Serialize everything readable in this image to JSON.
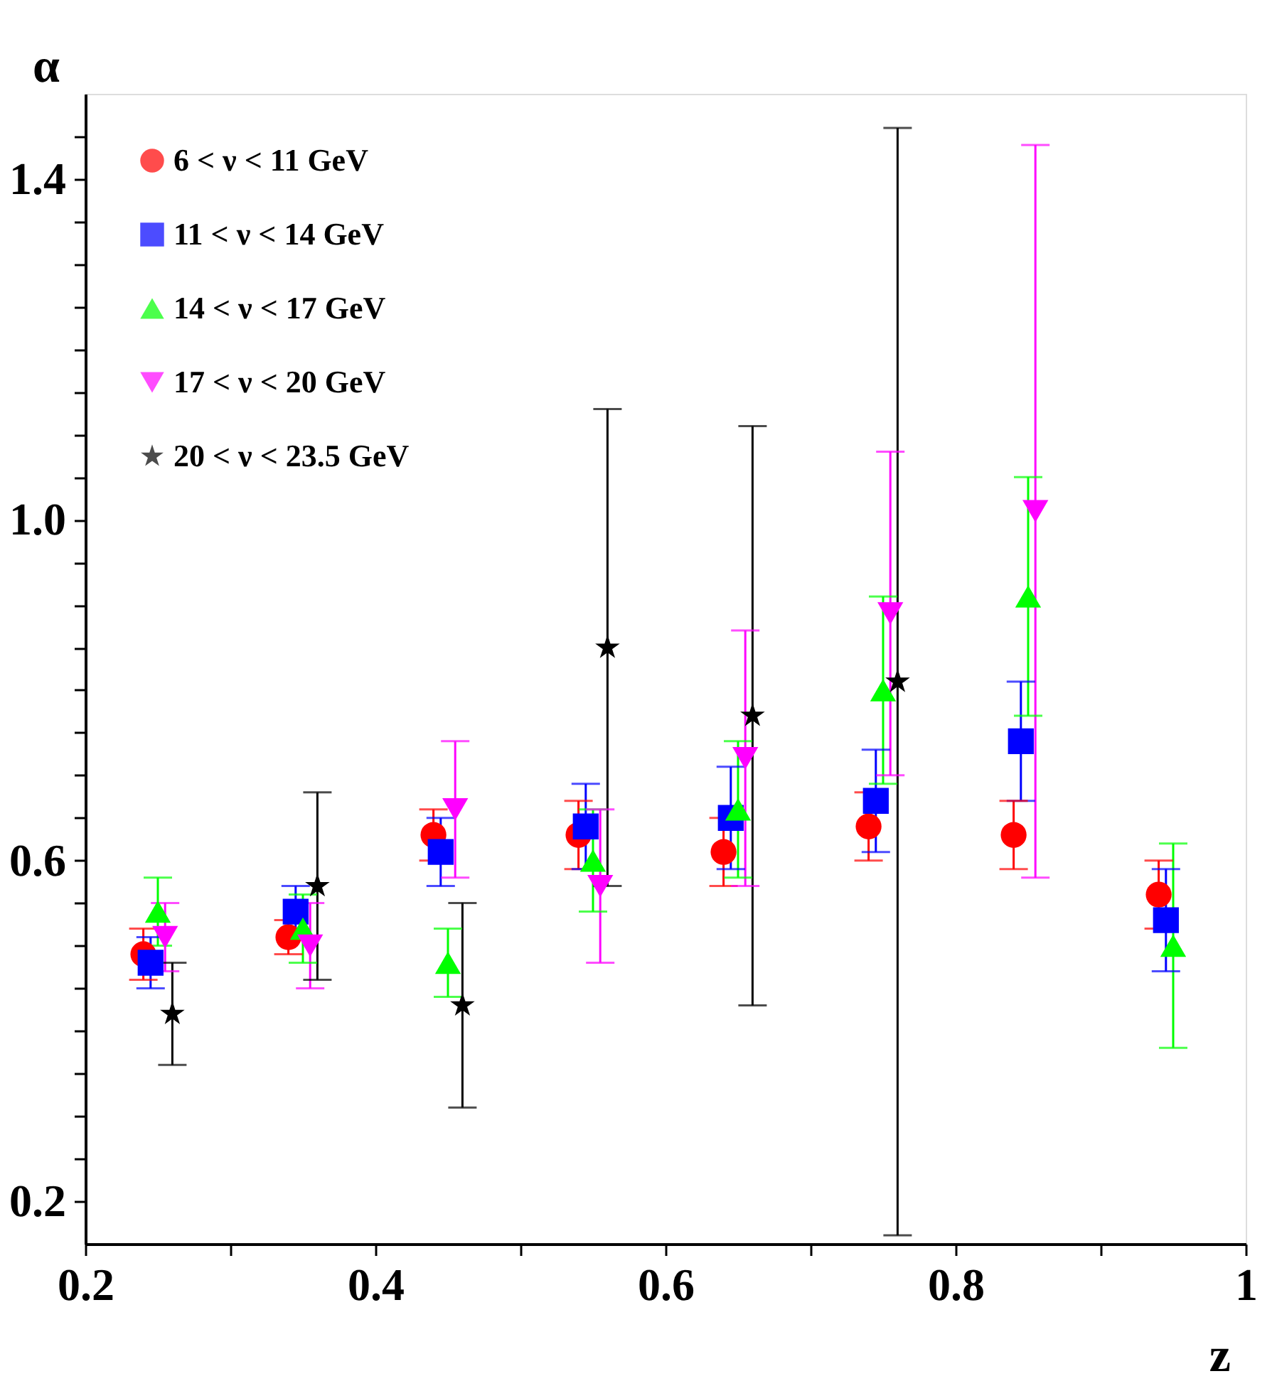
{
  "chart_data": {
    "type": "scatter",
    "xlabel": "z",
    "ylabel": "α",
    "xlim": [
      0.2,
      1.0
    ],
    "ylim": [
      0.15,
      1.5
    ],
    "xticks": [
      0.2,
      {
        "value": 0.3,
        "label": null
      },
      0.4,
      {
        "value": 0.5,
        "label": null
      },
      0.6,
      {
        "value": 0.7,
        "label": null
      },
      0.8,
      {
        "value": 0.9,
        "label": null
      },
      {
        "value": 1.0,
        "label": "1"
      }
    ],
    "yticks": [
      0.2,
      {
        "value": 0.25,
        "label": null
      },
      {
        "value": 0.3,
        "label": null
      },
      {
        "value": 0.35,
        "label": null
      },
      {
        "value": 0.4,
        "label": null
      },
      {
        "value": 0.45,
        "label": null
      },
      {
        "value": 0.5,
        "label": null
      },
      {
        "value": 0.55,
        "label": null
      },
      0.6,
      {
        "value": 0.65,
        "label": null
      },
      {
        "value": 0.7,
        "label": null
      },
      {
        "value": 0.75,
        "label": null
      },
      {
        "value": 0.8,
        "label": null
      },
      {
        "value": 0.85,
        "label": null
      },
      {
        "value": 0.9,
        "label": null
      },
      {
        "value": 0.95,
        "label": null
      },
      {
        "value": 1.0,
        "label": "1.0"
      },
      {
        "value": 1.05,
        "label": null
      },
      {
        "value": 1.1,
        "label": null
      },
      {
        "value": 1.15,
        "label": null
      },
      {
        "value": 1.2,
        "label": null
      },
      {
        "value": 1.25,
        "label": null
      },
      {
        "value": 1.3,
        "label": null
      },
      {
        "value": 1.35,
        "label": null
      },
      1.4,
      {
        "value": 1.45,
        "label": null
      }
    ],
    "grid": false,
    "legend": "top left",
    "series": [
      {
        "name": "6 < ν < 11 GeV",
        "color": "#ff0000",
        "marker": "circle",
        "x": [
          0.24,
          0.34,
          0.44,
          0.54,
          0.64,
          0.74,
          0.84,
          0.94
        ],
        "values": [
          0.49,
          0.51,
          0.63,
          0.63,
          0.61,
          0.64,
          0.63,
          0.56
        ],
        "errors": [
          0.03,
          0.02,
          0.03,
          0.04,
          0.04,
          0.04,
          0.04,
          0.04
        ]
      },
      {
        "name": "11 < ν < 14 GeV",
        "color": "#0000ff",
        "marker": "square",
        "x": [
          0.245,
          0.345,
          0.445,
          0.545,
          0.645,
          0.745,
          0.845,
          0.945
        ],
        "values": [
          0.48,
          0.54,
          0.61,
          0.64,
          0.65,
          0.67,
          0.74,
          0.53
        ],
        "errors": [
          0.03,
          0.03,
          0.04,
          0.05,
          0.06,
          0.06,
          0.07,
          0.06
        ]
      },
      {
        "name": "14 < ν < 17 GeV",
        "color": "#00ff00",
        "marker": "triangle",
        "x": [
          0.25,
          0.35,
          0.45,
          0.55,
          0.65,
          0.75,
          0.85,
          0.95
        ],
        "values": [
          0.54,
          0.52,
          0.48,
          0.6,
          0.66,
          0.8,
          0.91,
          0.5
        ],
        "errors": [
          0.04,
          0.04,
          0.04,
          0.06,
          0.08,
          0.11,
          0.14,
          0.12
        ]
      },
      {
        "name": "17 < ν < 20 GeV",
        "color": "#ff00ff",
        "marker": "triangle-down",
        "x": [
          0.255,
          0.355,
          0.455,
          0.555,
          0.655,
          0.755,
          0.855
        ],
        "values": [
          0.51,
          0.5,
          0.66,
          0.57,
          0.72,
          0.89,
          1.01
        ],
        "errors": [
          0.04,
          0.05,
          0.08,
          0.09,
          0.15,
          0.19,
          0.43
        ]
      },
      {
        "name": "20 < ν < 23.5 GeV",
        "color": "#000000",
        "marker": "star",
        "x": [
          0.26,
          0.36,
          0.46,
          0.56,
          0.66,
          0.76
        ],
        "values": [
          0.42,
          0.57,
          0.43,
          0.85,
          0.77,
          0.81
        ],
        "errors": [
          0.06,
          0.11,
          0.12,
          0.28,
          0.34,
          0.65
        ]
      }
    ]
  }
}
